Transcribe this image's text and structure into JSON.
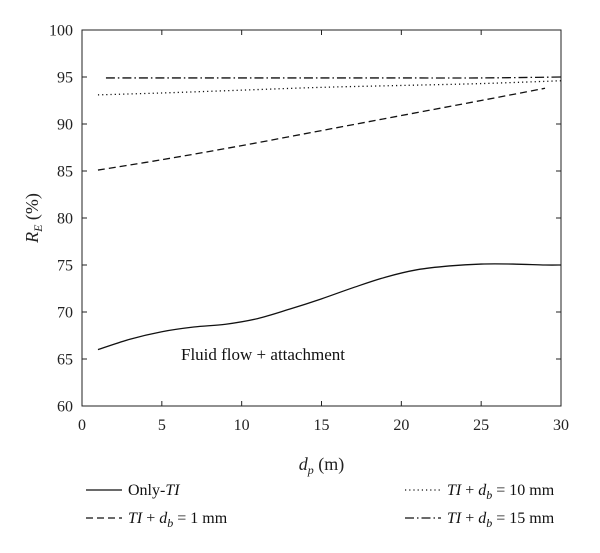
{
  "chart_data": {
    "type": "line",
    "title": "",
    "xlabel": {
      "main": "d",
      "sub": "p",
      "unit": " (m)"
    },
    "ylabel": {
      "main": "R",
      "sub": "E",
      "unit": " (%)"
    },
    "xlim": [
      0,
      30
    ],
    "ylim": [
      60,
      100
    ],
    "x_ticks": [
      0,
      5,
      10,
      15,
      20,
      25,
      30
    ],
    "y_ticks": [
      60,
      65,
      70,
      75,
      80,
      85,
      90,
      95,
      100
    ],
    "grid": false,
    "legend_position": "bottom",
    "annotation": "Fluid flow + attachment",
    "series": [
      {
        "key": "only-ti",
        "name": "Only-TI",
        "legend_parts": [
          {
            "t": "Only-",
            "style": "normal"
          },
          {
            "t": "TI",
            "style": "italic"
          }
        ],
        "dash": "solid",
        "x": [
          1,
          3,
          5,
          7,
          9,
          11,
          13,
          15,
          17,
          19,
          21,
          23,
          25,
          27,
          29,
          30
        ],
        "y": [
          66.0,
          67.1,
          67.9,
          68.4,
          68.7,
          69.3,
          70.3,
          71.4,
          72.6,
          73.7,
          74.5,
          74.9,
          75.1,
          75.1,
          75.0,
          75.0
        ]
      },
      {
        "key": "ti-db-1mm",
        "name": "TI + db = 1 mm",
        "legend_parts": [
          {
            "t": "TI",
            "style": "italic"
          },
          {
            "t": " + ",
            "style": "normal"
          },
          {
            "t": "d",
            "style": "italic"
          },
          {
            "t": "b",
            "style": "sub"
          },
          {
            "t": " = 1 mm",
            "style": "normal"
          }
        ],
        "dash": "dash",
        "x": [
          1,
          5,
          10,
          15,
          20,
          25,
          29
        ],
        "y": [
          85.1,
          86.2,
          87.7,
          89.3,
          90.9,
          92.5,
          93.8
        ]
      },
      {
        "key": "ti-db-10mm",
        "name": "TI + db = 10 mm",
        "legend_parts": [
          {
            "t": "TI",
            "style": "italic"
          },
          {
            "t": " + ",
            "style": "normal"
          },
          {
            "t": "d",
            "style": "italic"
          },
          {
            "t": "b",
            "style": "sub"
          },
          {
            "t": " = 10 mm",
            "style": "normal"
          }
        ],
        "dash": "dot",
        "x": [
          1,
          5,
          10,
          15,
          20,
          25,
          30
        ],
        "y": [
          93.1,
          93.3,
          93.6,
          93.9,
          94.1,
          94.3,
          94.6
        ]
      },
      {
        "key": "ti-db-15mm",
        "name": "TI + db = 15 mm",
        "legend_parts": [
          {
            "t": "TI",
            "style": "italic"
          },
          {
            "t": " + ",
            "style": "normal"
          },
          {
            "t": "d",
            "style": "italic"
          },
          {
            "t": "b",
            "style": "sub"
          },
          {
            "t": " = 15 mm",
            "style": "normal"
          }
        ],
        "dash": "dashdot",
        "x": [
          1.5,
          5,
          10,
          15,
          20,
          25,
          30
        ],
        "y": [
          94.9,
          94.9,
          94.9,
          94.9,
          94.9,
          94.9,
          95.0
        ]
      }
    ]
  }
}
